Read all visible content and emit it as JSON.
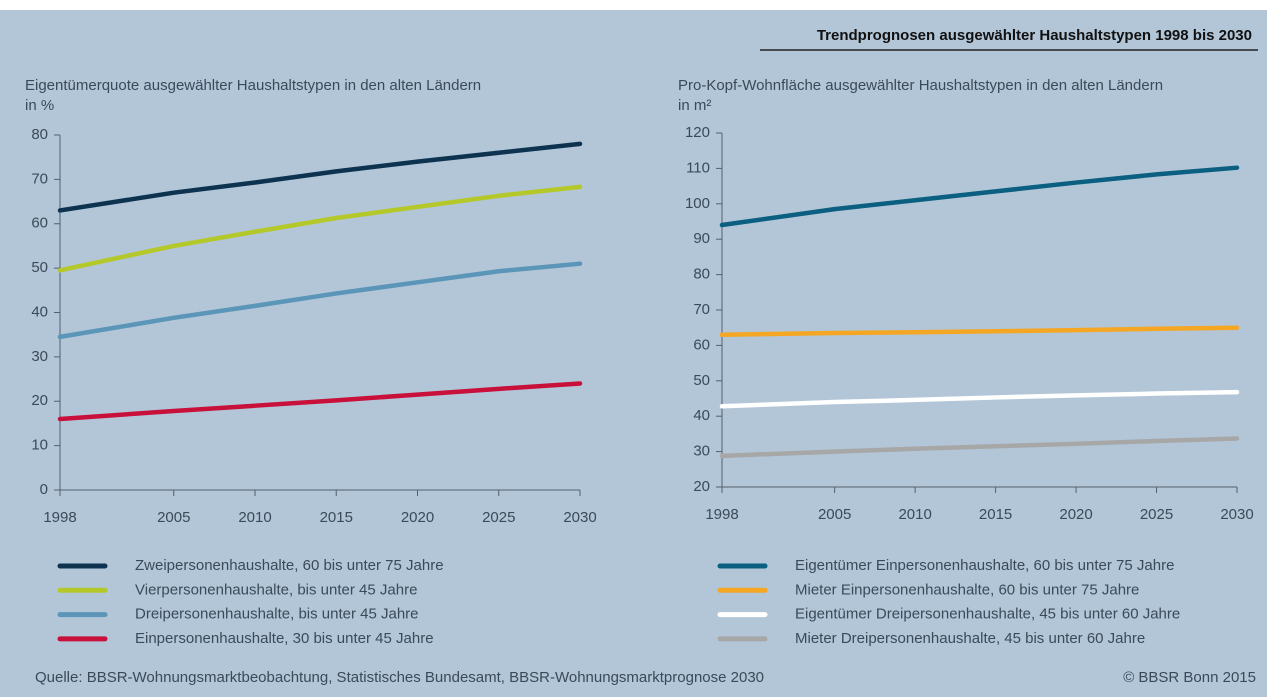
{
  "header": {
    "title": "Trendprognosen ausgewählter Haushaltstypen 1998 bis 2030"
  },
  "footer": {
    "source": "Quelle: BBSR-Wohnungsmarktbeobachtung, Statistisches Bundesamt, BBSR-Wohnungsmarktprognose 2030",
    "copyright": "© BBSR Bonn 2015"
  },
  "chart_data": [
    {
      "type": "line",
      "title": "Eigentümerquote ausgewählter Haushaltstypen in den alten Ländern",
      "ylabel": "in %",
      "x": [
        1998,
        2005,
        2010,
        2015,
        2020,
        2025,
        2030
      ],
      "xlim": [
        1998,
        2030
      ],
      "xticks": [
        1998,
        2005,
        2010,
        2015,
        2020,
        2025,
        2030
      ],
      "ylim": [
        0,
        80
      ],
      "yticks": [
        0,
        10,
        20,
        30,
        40,
        50,
        60,
        70,
        80
      ],
      "series": [
        {
          "name": "Zweipersonenhaushalte, 60 bis unter 75 Jahre",
          "color": "#0d3350",
          "values": [
            63,
            67,
            69.3,
            71.8,
            74,
            76,
            78
          ]
        },
        {
          "name": "Vierpersonenhaushalte, bis unter 45 Jahre",
          "color": "#b5c82a",
          "values": [
            49.5,
            55,
            58.2,
            61.3,
            63.8,
            66.3,
            68.3
          ]
        },
        {
          "name": "Dreipersonenhaushalte, bis unter 45 Jahre",
          "color": "#5b95b8",
          "values": [
            34.5,
            38.8,
            41.5,
            44.3,
            46.8,
            49.3,
            51
          ]
        },
        {
          "name": "Einpersonenhaushalte, 30 bis unter 45 Jahre",
          "color": "#c8103a",
          "values": [
            16,
            17.8,
            19,
            20.2,
            21.5,
            22.8,
            24
          ]
        }
      ]
    },
    {
      "type": "line",
      "title": "Pro-Kopf-Wohnfläche ausgewählter Haushaltstypen in den alten Ländern",
      "ylabel": "in m²",
      "x": [
        1998,
        2005,
        2010,
        2015,
        2020,
        2025,
        2030
      ],
      "xlim": [
        1998,
        2030
      ],
      "xticks": [
        1998,
        2005,
        2010,
        2015,
        2020,
        2025,
        2030
      ],
      "ylim": [
        20,
        120
      ],
      "yticks": [
        20,
        30,
        40,
        50,
        60,
        70,
        80,
        90,
        100,
        110,
        120
      ],
      "series": [
        {
          "name": "Eigentümer Einpersonenhaushalte, 60 bis unter 75 Jahre",
          "color": "#0b5f80",
          "values": [
            94,
            98.5,
            101,
            103.5,
            106,
            108.3,
            110.2
          ]
        },
        {
          "name": "Mieter Einpersonenhaushalte, 60 bis unter 75 Jahre",
          "color": "#f5a623",
          "values": [
            63,
            63.5,
            63.7,
            64,
            64.3,
            64.7,
            65
          ]
        },
        {
          "name": "Eigentümer Dreipersonenhaushalte, 45 bis unter 60 Jahre",
          "color": "#ffffff",
          "values": [
            42.8,
            44,
            44.6,
            45.3,
            45.9,
            46.4,
            46.8
          ]
        },
        {
          "name": "Mieter Dreipersonenhaushalte, 45 bis unter 60 Jahre",
          "color": "#a7a7a7",
          "values": [
            28.8,
            30,
            30.8,
            31.5,
            32.2,
            33,
            33.7
          ]
        }
      ]
    }
  ]
}
